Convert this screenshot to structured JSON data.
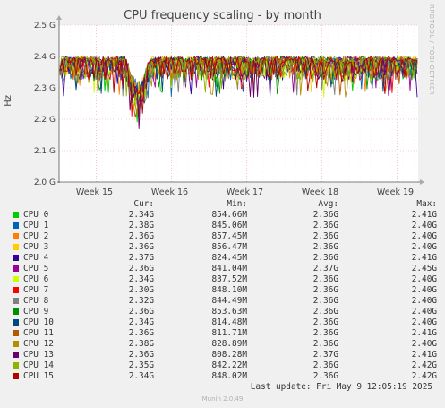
{
  "title": "CPU frequency scaling - by month",
  "side_label": "RRDTOOL / TOBI OETIKER",
  "footer": "Last update: Fri May  9 12:05:19 2025",
  "munin": "Munin 2.0.49",
  "legend_header": {
    "cur": "Cur:",
    "min": "Min:",
    "avg": "Avg:",
    "max": "Max:"
  },
  "chart_data": {
    "type": "line",
    "title": "CPU frequency scaling - by month",
    "ylabel": "Hz",
    "ylim": [
      2.0,
      2.5
    ],
    "yticks": [
      "2.0 G",
      "2.1 G",
      "2.2 G",
      "2.3 G",
      "2.4 G",
      "2.5 G"
    ],
    "xticks": [
      "Week 15",
      "Week 16",
      "Week 17",
      "Week 18",
      "Week 19"
    ],
    "grid": true,
    "legend": "below",
    "series": [
      {
        "name": "CPU 0",
        "color": "#00cc00",
        "cur": "2.34G",
        "min": "854.66M",
        "avg": "2.36G",
        "max": "2.41G"
      },
      {
        "name": "CPU 1",
        "color": "#0066b3",
        "cur": "2.38G",
        "min": "845.06M",
        "avg": "2.36G",
        "max": "2.40G"
      },
      {
        "name": "CPU 2",
        "color": "#ff8000",
        "cur": "2.36G",
        "min": "857.45M",
        "avg": "2.36G",
        "max": "2.40G"
      },
      {
        "name": "CPU 3",
        "color": "#ffcc00",
        "cur": "2.36G",
        "min": "856.47M",
        "avg": "2.36G",
        "max": "2.40G"
      },
      {
        "name": "CPU 4",
        "color": "#330099",
        "cur": "2.37G",
        "min": "824.45M",
        "avg": "2.36G",
        "max": "2.41G"
      },
      {
        "name": "CPU 5",
        "color": "#990099",
        "cur": "2.36G",
        "min": "841.04M",
        "avg": "2.37G",
        "max": "2.45G"
      },
      {
        "name": "CPU 6",
        "color": "#ccff00",
        "cur": "2.34G",
        "min": "837.52M",
        "avg": "2.36G",
        "max": "2.40G"
      },
      {
        "name": "CPU 7",
        "color": "#ff0000",
        "cur": "2.30G",
        "min": "848.10M",
        "avg": "2.36G",
        "max": "2.40G"
      },
      {
        "name": "CPU 8",
        "color": "#808080",
        "cur": "2.32G",
        "min": "844.49M",
        "avg": "2.36G",
        "max": "2.40G"
      },
      {
        "name": "CPU 9",
        "color": "#008f00",
        "cur": "2.36G",
        "min": "853.63M",
        "avg": "2.36G",
        "max": "2.40G"
      },
      {
        "name": "CPU 10",
        "color": "#00487d",
        "cur": "2.34G",
        "min": "814.48M",
        "avg": "2.36G",
        "max": "2.40G"
      },
      {
        "name": "CPU 11",
        "color": "#b35a00",
        "cur": "2.36G",
        "min": "811.71M",
        "avg": "2.36G",
        "max": "2.41G"
      },
      {
        "name": "CPU 12",
        "color": "#b38f00",
        "cur": "2.38G",
        "min": "828.89M",
        "avg": "2.36G",
        "max": "2.40G"
      },
      {
        "name": "CPU 13",
        "color": "#6b006b",
        "cur": "2.36G",
        "min": "808.28M",
        "avg": "2.37G",
        "max": "2.41G"
      },
      {
        "name": "CPU 14",
        "color": "#8fb300",
        "cur": "2.35G",
        "min": "842.22M",
        "avg": "2.36G",
        "max": "2.42G"
      },
      {
        "name": "CPU 15",
        "color": "#b30000",
        "cur": "2.34G",
        "min": "848.02M",
        "avg": "2.36G",
        "max": "2.42G"
      }
    ]
  }
}
